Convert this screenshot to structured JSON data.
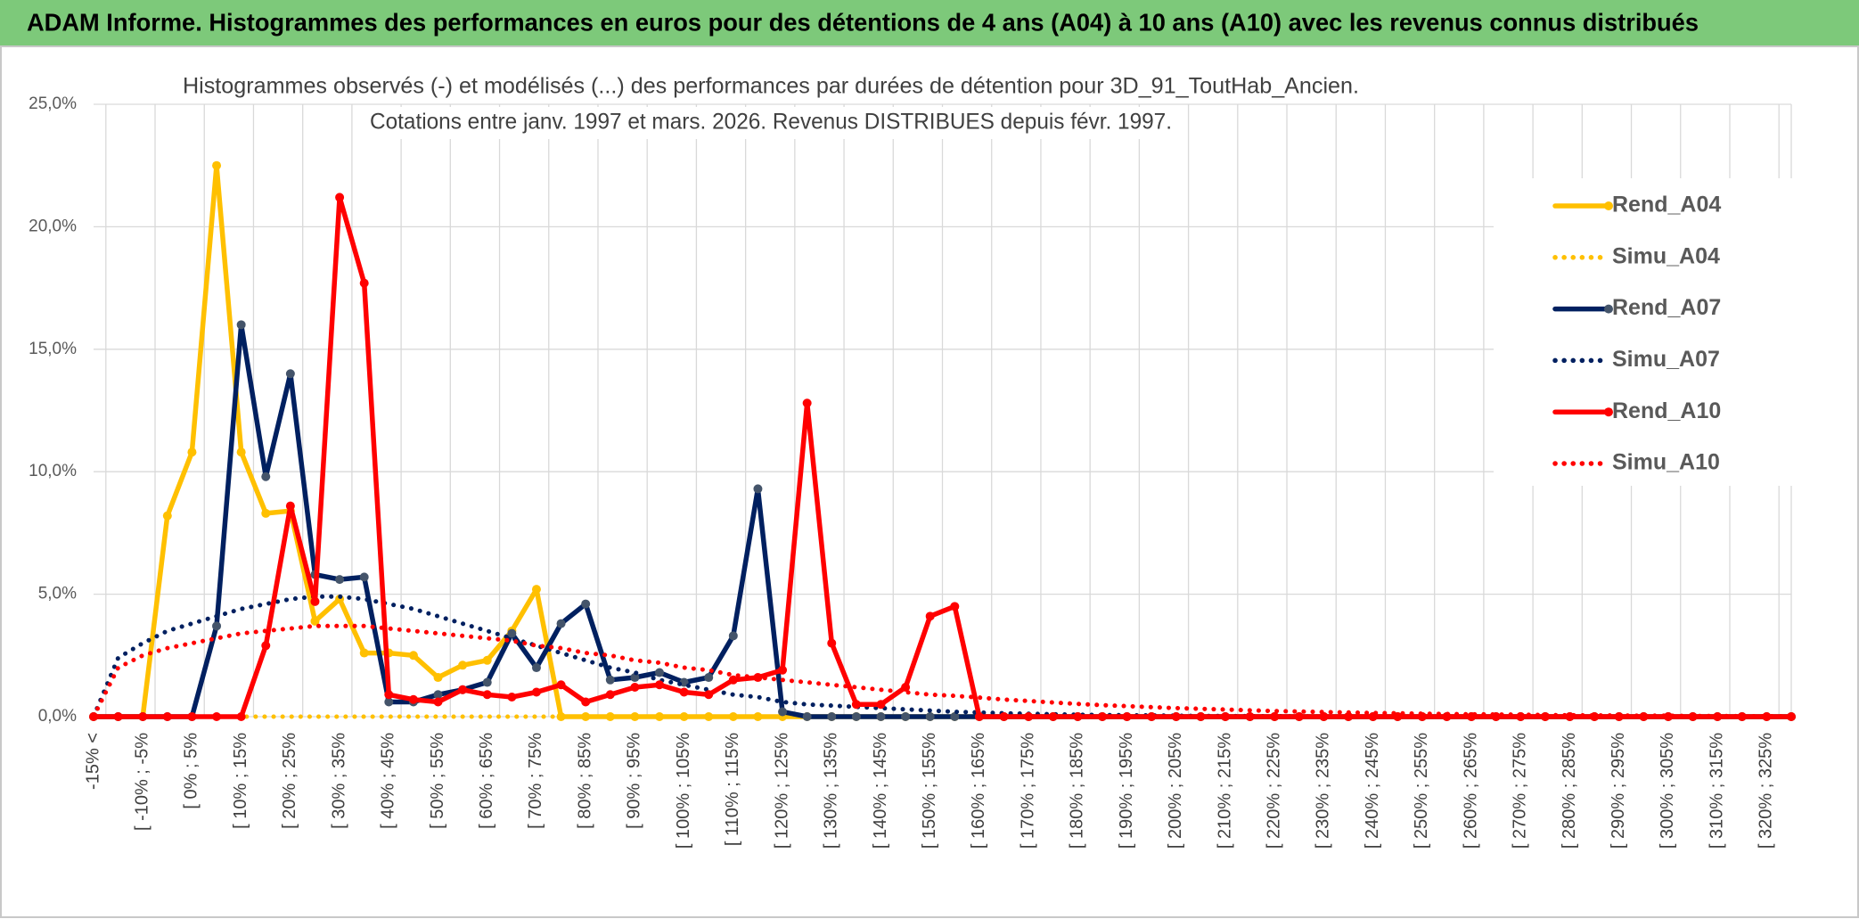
{
  "header": {
    "title": "ADAM Informe. Histogrammes des performances en euros pour des détentions de 4 ans (A04) à 10 ans (A10) avec les revenus connus distribués"
  },
  "chart_data": {
    "type": "line",
    "title": "Histogrammes observés (-) et modélisés (...) des performances par durées de détention pour 3D_91_ToutHab_Ancien.",
    "subtitle": "Cotations entre janv. 1997 et mars. 2026. Revenus DISTRIBUES depuis févr. 1997.",
    "categories": [
      "-15% <",
      null,
      "[ -10% ; -5%",
      null,
      "[ 0% ; 5%",
      null,
      "[ 10% ; 15%",
      null,
      "[ 20% ; 25%",
      null,
      "[ 30% ; 35%",
      null,
      "[ 40% ; 45%",
      null,
      "[ 50% ; 55%",
      null,
      "[ 60% ; 65%",
      null,
      "[ 70% ; 75%",
      null,
      "[ 80% ; 85%",
      null,
      "[ 90% ; 95%",
      null,
      "[ 100% ; 105%",
      null,
      "[ 110% ; 115%",
      null,
      "[ 120% ; 125%",
      null,
      "[ 130% ; 135%",
      null,
      "[ 140% ; 145%",
      null,
      "[ 150% ; 155%",
      null,
      "[ 160% ; 165%",
      null,
      "[ 170% ; 175%",
      null,
      "[ 180% ; 185%",
      null,
      "[ 190% ; 195%",
      null,
      "[ 200% ; 205%",
      null,
      "[ 210% ; 215%",
      null,
      "[ 220% ; 225%",
      null,
      "[ 230% ; 235%",
      null,
      "[ 240% ; 245%",
      null,
      "[ 250% ; 255%",
      null,
      "[ 260% ; 265%",
      null,
      "[ 270% ; 275%",
      null,
      "[ 280% ; 285%",
      null,
      "[ 290% ; 295%",
      null,
      "[ 300% ; 305%",
      null,
      "[ 310% ; 315%",
      null,
      "[ 320% ; 325%",
      null
    ],
    "series": [
      {
        "name": "Rend_A04",
        "color": "#ffc000",
        "style": "solid",
        "values": [
          0,
          0,
          0,
          8.2,
          10.8,
          22.5,
          10.8,
          8.3,
          8.4,
          3.9,
          4.8,
          2.6,
          2.6,
          2.5,
          1.6,
          2.1,
          2.3,
          3.5,
          5.2,
          0,
          0,
          0,
          0,
          0,
          0,
          0,
          0,
          0,
          0,
          0,
          0,
          0,
          0,
          0,
          0,
          0,
          0,
          0,
          0,
          0,
          0,
          0,
          0,
          0,
          0,
          0,
          0,
          0,
          0,
          0,
          0,
          0,
          0,
          0,
          0,
          0,
          0,
          0,
          0,
          0,
          0,
          0,
          0,
          0,
          0,
          0,
          0,
          0,
          0,
          0
        ]
      },
      {
        "name": "Simu_A04",
        "color": "#ffc000",
        "style": "dotted",
        "values": [
          0,
          0,
          0,
          0,
          0,
          0,
          0,
          0,
          0,
          0,
          0,
          0,
          0,
          0,
          0,
          0,
          0,
          0,
          0,
          0,
          0,
          0,
          0,
          0,
          0,
          0,
          0,
          0,
          0,
          0,
          0,
          0,
          0,
          0,
          0,
          0,
          0,
          0,
          0,
          0,
          0,
          0,
          0,
          0,
          0,
          0,
          0,
          0,
          0,
          0,
          0,
          0,
          0,
          0,
          0,
          0,
          0,
          0,
          0,
          0,
          0,
          0,
          0,
          0,
          0,
          0,
          0,
          0,
          0,
          0
        ]
      },
      {
        "name": "Rend_A07",
        "color": "#002060",
        "marker": "#44546a",
        "style": "solid",
        "values": [
          0,
          0,
          0,
          0,
          0,
          3.7,
          16.0,
          9.8,
          14.0,
          5.8,
          5.6,
          5.7,
          0.6,
          0.6,
          0.9,
          1.1,
          1.4,
          3.4,
          2.0,
          3.8,
          4.6,
          1.5,
          1.6,
          1.8,
          1.4,
          1.6,
          3.3,
          9.3,
          0.2,
          0,
          0,
          0,
          0,
          0,
          0,
          0,
          0,
          0,
          0,
          0,
          0,
          0,
          0,
          0,
          0,
          0,
          0,
          0,
          0,
          0,
          0,
          0,
          0,
          0,
          0,
          0,
          0,
          0,
          0,
          0,
          0,
          0,
          0,
          0,
          0,
          0,
          0,
          0,
          0,
          0
        ]
      },
      {
        "name": "Simu_A07",
        "color": "#002060",
        "style": "dotted",
        "values": [
          0,
          2.4,
          3.0,
          3.5,
          3.8,
          4.1,
          4.4,
          4.6,
          4.8,
          4.9,
          4.9,
          4.8,
          4.6,
          4.4,
          4.1,
          3.8,
          3.5,
          3.2,
          2.9,
          2.6,
          2.3,
          2.0,
          1.8,
          1.5,
          1.3,
          1.1,
          0.9,
          0.8,
          0.6,
          0.5,
          0.45,
          0.4,
          0.35,
          0.3,
          0.25,
          0.2,
          0.17,
          0.14,
          0.12,
          0.1,
          0.08,
          0.07,
          0.06,
          0.05,
          0.04,
          0.03,
          0.03,
          0.02,
          0.02,
          0.01,
          0,
          0,
          0,
          0,
          0,
          0,
          0,
          0,
          0,
          0,
          0,
          0,
          0,
          0,
          0,
          0,
          0,
          0,
          0,
          0
        ]
      },
      {
        "name": "Rend_A10",
        "color": "#ff0000",
        "style": "solid",
        "values": [
          0,
          0,
          0,
          0,
          0,
          0,
          0,
          2.9,
          8.6,
          4.7,
          21.2,
          17.7,
          0.9,
          0.7,
          0.6,
          1.1,
          0.9,
          0.8,
          1.0,
          1.3,
          0.6,
          0.9,
          1.2,
          1.3,
          1.0,
          0.9,
          1.5,
          1.6,
          1.9,
          12.8,
          3.0,
          0.5,
          0.5,
          1.2,
          4.1,
          4.5,
          0,
          0,
          0,
          0,
          0,
          0,
          0,
          0,
          0,
          0,
          0,
          0,
          0,
          0,
          0,
          0,
          0,
          0,
          0,
          0,
          0,
          0,
          0,
          0,
          0,
          0,
          0,
          0,
          0,
          0,
          0,
          0,
          0,
          0
        ]
      },
      {
        "name": "Simu_A10",
        "color": "#ff0000",
        "style": "dotted",
        "values": [
          0,
          2.0,
          2.5,
          2.8,
          3.0,
          3.2,
          3.4,
          3.5,
          3.6,
          3.7,
          3.7,
          3.7,
          3.6,
          3.5,
          3.4,
          3.3,
          3.2,
          3.1,
          2.9,
          2.8,
          2.6,
          2.5,
          2.3,
          2.2,
          2.0,
          1.9,
          1.7,
          1.6,
          1.5,
          1.4,
          1.3,
          1.2,
          1.1,
          1.0,
          0.9,
          0.85,
          0.78,
          0.7,
          0.64,
          0.58,
          0.52,
          0.47,
          0.43,
          0.39,
          0.35,
          0.32,
          0.29,
          0.26,
          0.23,
          0.21,
          0.19,
          0.17,
          0.15,
          0.14,
          0.12,
          0.11,
          0.1,
          0.09,
          0.08,
          0.07,
          0.06,
          0.05,
          0.05,
          0.04,
          0.04,
          0.03,
          0.03,
          0.02,
          0.02,
          0.02
        ]
      }
    ],
    "ylim": [
      0,
      25
    ],
    "yticks": [
      {
        "value": 0,
        "label": "0,0%"
      },
      {
        "value": 5,
        "label": "5,0%"
      },
      {
        "value": 10,
        "label": "10,0%"
      },
      {
        "value": 15,
        "label": "15,0%"
      },
      {
        "value": 20,
        "label": "20,0%"
      },
      {
        "value": 25,
        "label": "25,0%"
      }
    ],
    "grid": true,
    "legend": "right"
  }
}
